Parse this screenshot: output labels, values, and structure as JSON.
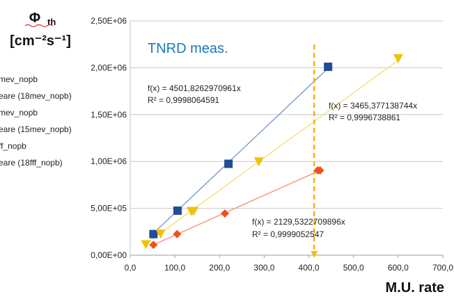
{
  "chart_data": {
    "type": "scatter",
    "title": "",
    "ylabel_main": "Φ",
    "ylabel_sub": "th",
    "yunit": "[cm⁻²s⁻¹]",
    "xlabel": "M.U. rate",
    "annotation": "TNRD meas.",
    "xlim": [
      0,
      700
    ],
    "ylim": [
      0,
      2500000
    ],
    "x_ticks": [
      "0,0",
      "100,0",
      "200,0",
      "300,0",
      "400,0",
      "500,0",
      "600,0",
      "700,0"
    ],
    "x_tick_values": [
      0,
      100,
      200,
      300,
      400,
      500,
      600,
      700
    ],
    "y_ticks": [
      "0,00E+00",
      "5,00E+05",
      "1,00E+06",
      "1,50E+06",
      "2,00E+06",
      "2,50E+06"
    ],
    "y_tick_values": [
      0,
      500000,
      1000000,
      1500000,
      2000000,
      2500000
    ],
    "grid": "horizontal",
    "legend_position": "left",
    "legend": [
      "mev_nopb",
      "eare (18mev_nopb)",
      "mev_nopb",
      "eare (15mev_nopb)",
      "ff_nopb",
      "eare (18fff_nopb)"
    ],
    "vertical_line_x": 412,
    "series": [
      {
        "color": "#1f4e99",
        "trend_color": "#7fa3cf",
        "marker": "square",
        "x": [
          52,
          106,
          220,
          443
        ],
        "y": [
          225000,
          475000,
          975000,
          2010000
        ],
        "trend_slope": 4501.8262970961,
        "trend_x": [
          52,
          443
        ],
        "equation": "f(x) = 4501,8262970961x",
        "r2": "R² = 0,9998064591"
      },
      {
        "color": "#f2c200",
        "trend_color": "#f7e27a",
        "marker": "triangle-down",
        "x": [
          35,
          68,
          137,
          142,
          288,
          600
        ],
        "y": [
          115000,
          230000,
          470000,
          470000,
          1000000,
          2100000
        ],
        "trend_slope": 3465.377138744,
        "trend_x": [
          35,
          600
        ],
        "equation": "f(x) = 3465,377138744x",
        "r2": "R² = 0,9996738861"
      },
      {
        "color": "#f0501e",
        "trend_color": "#f59a7c",
        "marker": "diamond",
        "x": [
          52,
          105,
          212,
          420,
          425
        ],
        "y": [
          110000,
          225000,
          445000,
          905000,
          905000
        ],
        "trend_slope": 2129.5322709896,
        "trend_x": [
          52,
          425
        ],
        "equation": "f(x) = 2129,5322709896x",
        "r2": "R² = 0,9999052547"
      }
    ]
  }
}
